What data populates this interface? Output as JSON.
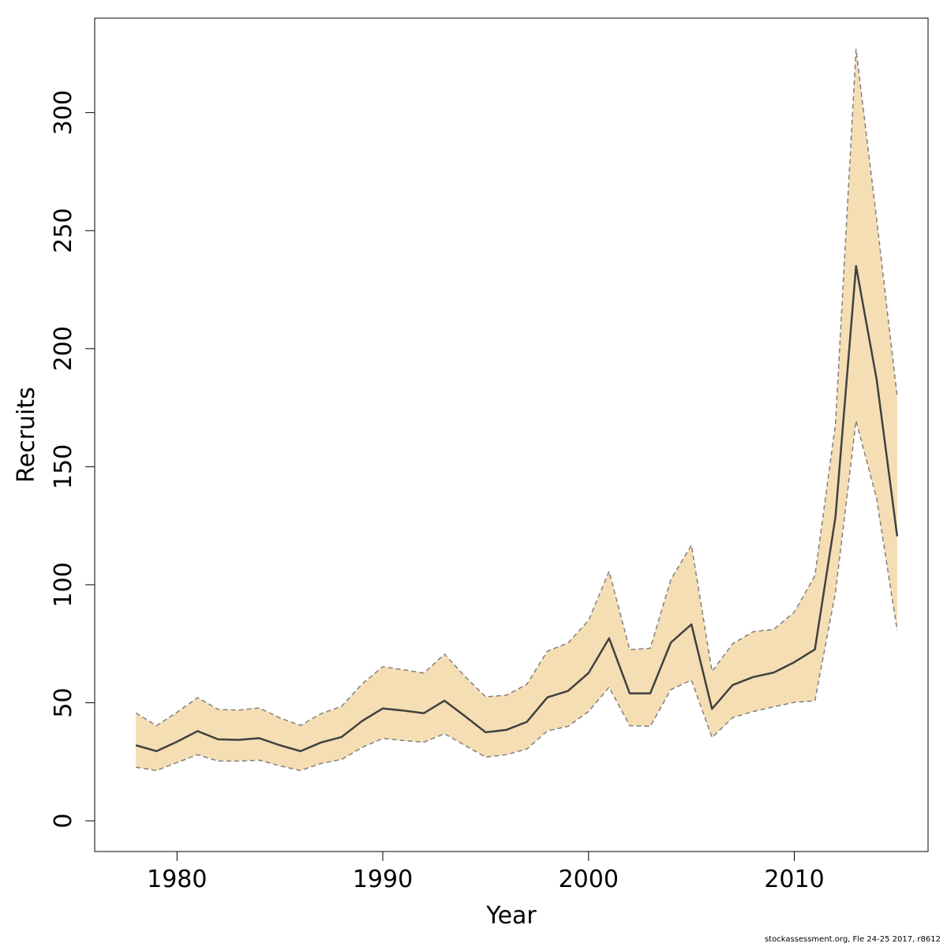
{
  "chart_data": {
    "type": "area",
    "title": "",
    "xlabel": "Year",
    "ylabel": "Recruits",
    "xlim": [
      1976,
      2016.5
    ],
    "ylim": [
      -13,
      340
    ],
    "x_ticks": [
      1980,
      1990,
      2000,
      2010
    ],
    "y_ticks": [
      0,
      50,
      100,
      150,
      200,
      250,
      300
    ],
    "x_tick_labels": [
      "1980",
      "1990",
      "2000",
      "2010"
    ],
    "y_tick_labels": [
      "0",
      "50",
      "100",
      "150",
      "200",
      "250",
      "300"
    ],
    "grid": false,
    "legend": "none",
    "x": [
      1978,
      1979,
      1980,
      1981,
      1982,
      1983,
      1984,
      1985,
      1986,
      1987,
      1988,
      1989,
      1990,
      1991,
      1992,
      1993,
      1994,
      1995,
      1996,
      1997,
      1998,
      1999,
      2000,
      2001,
      2002,
      2003,
      2004,
      2005,
      2006,
      2007,
      2008,
      2009,
      2010,
      2011,
      2012,
      2013,
      2014,
      2015
    ],
    "series": [
      {
        "role": "estimate",
        "values": [
          32,
          29.5,
          33.5,
          38,
          34.5,
          34.3,
          35,
          32,
          29.5,
          33.2,
          35.5,
          42.3,
          47.6,
          46.7,
          45.6,
          50.9,
          44.3,
          37.5,
          38.5,
          41.9,
          52.3,
          55,
          62.6,
          77.3,
          54,
          54,
          75.5,
          83.2,
          47.4,
          57.5,
          60.9,
          62.8,
          67.2,
          72.6,
          128.7,
          235,
          187,
          120.5
        ],
        "color": "#404040",
        "style": "solid"
      },
      {
        "role": "lower",
        "values": [
          22.7,
          21.3,
          24.7,
          28,
          25.3,
          25.3,
          25.7,
          23.3,
          21.3,
          24.3,
          26,
          31.1,
          34.9,
          34,
          33.3,
          36.9,
          31.9,
          27,
          28,
          30.4,
          38.1,
          40,
          46.3,
          56.6,
          40.3,
          40,
          55.6,
          59.6,
          35.3,
          43.7,
          46.3,
          48.3,
          50.2,
          50.8,
          96.7,
          169.5,
          136.5,
          80.6
        ],
        "color": "#808080",
        "style": "dashed"
      },
      {
        "role": "upper",
        "values": [
          45.7,
          40.3,
          46,
          52.2,
          47.2,
          46.9,
          47.8,
          43.6,
          40.4,
          45.4,
          48.5,
          58,
          65.3,
          64,
          62.6,
          70.6,
          61.1,
          52.5,
          53.2,
          57.8,
          71.9,
          75.3,
          84.9,
          105.7,
          72.5,
          73.1,
          102.2,
          116.8,
          63.3,
          75,
          80.1,
          81.1,
          88.4,
          103.8,
          168,
          326.8,
          254.9,
          179.7
        ],
        "color": "#808080",
        "style": "dashed"
      }
    ],
    "band_color": "#F5DEB3"
  },
  "footer": {
    "text": "stockassessment.org, Fle 24-25 2017, r8612"
  }
}
